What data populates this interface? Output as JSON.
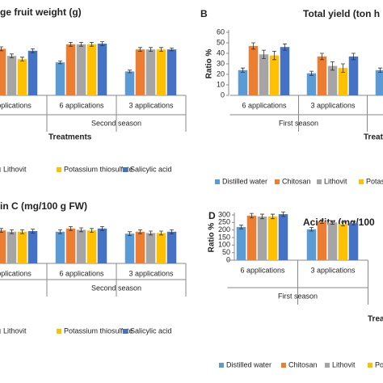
{
  "chart_data": [
    {
      "type": "bar",
      "title": "ge fruit weight (g)",
      "categories": [
        "applications",
        "6 applications",
        "3 applications"
      ],
      "group_label": "Second season",
      "xlabel": "Treatments",
      "ylim": [
        0,
        100
      ],
      "series": [
        {
          "color": "#5b9bd5",
          "values": [
            null,
            51,
            37
          ],
          "errors": [
            null,
            2,
            2
          ]
        },
        {
          "color": "#ed7d31",
          "values": [
            72,
            79,
            71
          ],
          "errors": [
            3,
            3,
            3
          ]
        },
        {
          "name": "Lithovit",
          "color": "#a5a5a5",
          "values": [
            61,
            79,
            71
          ],
          "errors": [
            3,
            3,
            3
          ]
        },
        {
          "name": "Potassium thiosulfate",
          "color": "#ffc000",
          "values": [
            56,
            79,
            71
          ],
          "errors": [
            3,
            3,
            3
          ]
        },
        {
          "name": "Salicylic acid",
          "color": "#4472c4",
          "values": [
            69,
            80,
            71
          ],
          "errors": [
            3,
            3,
            2
          ]
        }
      ]
    },
    {
      "type": "bar",
      "label": "B",
      "title": "Total yield (ton h",
      "ylabel": "Ratio %",
      "categories": [
        "6 applications",
        "3 applications",
        "6"
      ],
      "group_label": "First season",
      "xlabel": "Treatme",
      "ylim": [
        0,
        60
      ],
      "yticks": [
        0,
        10,
        20,
        30,
        40,
        50,
        60
      ],
      "series": [
        {
          "name": "Distilled water",
          "color": "#5b9bd5",
          "values": [
            24,
            21,
            24
          ],
          "errors": [
            2,
            2,
            2
          ]
        },
        {
          "name": "Chitosan",
          "color": "#ed7d31",
          "values": [
            47,
            37,
            null
          ],
          "errors": [
            3,
            3,
            null
          ]
        },
        {
          "name": "Lithovit",
          "color": "#a5a5a5",
          "values": [
            39,
            28,
            null
          ],
          "errors": [
            4,
            4,
            null
          ]
        },
        {
          "name": "Potas",
          "color": "#ffc000",
          "values": [
            38,
            26,
            null
          ],
          "errors": [
            4,
            4,
            null
          ]
        },
        {
          "color": "#4472c4",
          "values": [
            46,
            37,
            null
          ],
          "errors": [
            3,
            3,
            null
          ]
        }
      ]
    },
    {
      "type": "bar",
      "title": "in C (mg/100 g FW)",
      "categories": [
        "applications",
        "6 applications",
        "3 applications"
      ],
      "group_label": "Second season",
      "ylim": [
        0,
        100
      ],
      "series": [
        {
          "color": "#5b9bd5",
          "values": [
            null,
            49,
            46
          ],
          "errors": [
            null,
            3,
            3
          ]
        },
        {
          "color": "#ed7d31",
          "values": [
            51,
            54,
            49
          ],
          "errors": [
            3,
            3,
            3
          ]
        },
        {
          "name": "Lithovit",
          "color": "#a5a5a5",
          "values": [
            49,
            52,
            47
          ],
          "errors": [
            3,
            3,
            3
          ]
        },
        {
          "name": "Potassium thiosulfate",
          "color": "#ffc000",
          "values": [
            49,
            51,
            47
          ],
          "errors": [
            3,
            3,
            3
          ]
        },
        {
          "name": "Salicylic acid",
          "color": "#4472c4",
          "values": [
            50,
            54,
            49
          ],
          "errors": [
            3,
            3,
            3
          ]
        }
      ]
    },
    {
      "type": "bar",
      "label": "D",
      "title": "Acidity (mg/100",
      "ylabel": "Ratio %",
      "categories": [
        "6 applications",
        "3 applications"
      ],
      "group_label": "First season",
      "xlabel": "Treatme",
      "ylim": [
        0,
        300
      ],
      "yticks": [
        0,
        50,
        100,
        150,
        200,
        250,
        300
      ],
      "series": [
        {
          "name": "Distilled water",
          "color": "#5b9bd5",
          "values": [
            220,
            205
          ],
          "errors": [
            12,
            12
          ]
        },
        {
          "name": "Chitosan",
          "color": "#ed7d31",
          "values": [
            295,
            255
          ],
          "errors": [
            15,
            12
          ]
        },
        {
          "name": "Lithovit",
          "color": "#a5a5a5",
          "values": [
            290,
            250
          ],
          "errors": [
            15,
            12
          ]
        },
        {
          "name": "Potas",
          "color": "#ffc000",
          "values": [
            290,
            240
          ],
          "errors": [
            15,
            12
          ]
        },
        {
          "color": "#4472c4",
          "values": [
            305,
            245
          ],
          "errors": [
            15,
            10
          ]
        }
      ]
    }
  ]
}
